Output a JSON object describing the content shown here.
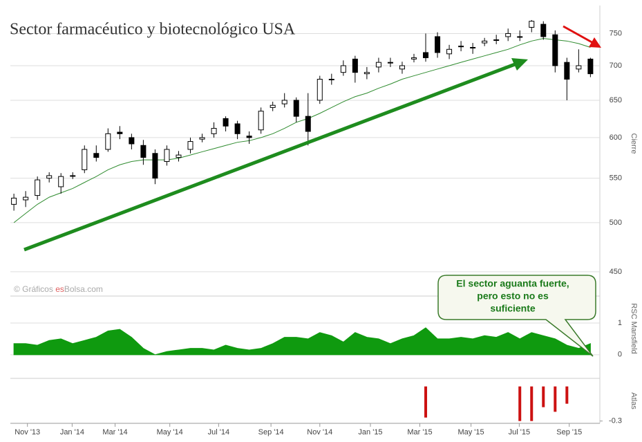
{
  "title": "Sector farmacéutico y biotecnológico USA",
  "watermark": [
    "© Gráficos ",
    "es",
    "Bolsa.com"
  ],
  "callout": [
    "El sector aguanta fuerte,",
    "pero esto no es",
    "suficiente"
  ],
  "chart_data": [
    {
      "type": "candlestick",
      "y_label": "Cierre",
      "log_scale": true,
      "grid": true,
      "up_color": "#ffffff",
      "down_color": "#000000",
      "x": [
        0,
        2,
        4,
        6,
        8,
        10,
        12,
        14,
        16,
        18,
        20,
        22,
        24,
        26,
        28,
        30,
        32,
        34,
        36,
        38,
        40,
        42,
        44,
        46,
        48,
        50,
        52,
        54,
        56,
        58,
        60,
        62,
        64,
        66,
        68,
        70,
        72,
        74,
        76,
        78,
        80,
        82,
        84,
        86,
        88,
        90,
        92,
        94,
        96,
        98
      ],
      "open": [
        520,
        525,
        530,
        550,
        540,
        553,
        560,
        580,
        585,
        607,
        600,
        590,
        580,
        570,
        575,
        585,
        598,
        605,
        625,
        618,
        602,
        610,
        640,
        645,
        650,
        628,
        650,
        680,
        690,
        710,
        688,
        698,
        705,
        695,
        710,
        720,
        745,
        718,
        730,
        728,
        735,
        740,
        745,
        745,
        760,
        765,
        748,
        705,
        695,
        710
      ],
      "high": [
        532,
        535,
        552,
        557,
        556,
        557,
        590,
        590,
        612,
        615,
        605,
        597,
        585,
        590,
        583,
        600,
        605,
        620,
        628,
        622,
        608,
        640,
        648,
        660,
        654,
        660,
        685,
        688,
        708,
        715,
        698,
        712,
        712,
        706,
        718,
        750,
        752,
        732,
        738,
        735,
        743,
        748,
        758,
        755,
        772,
        770,
        755,
        712,
        725,
        712
      ],
      "low": [
        513,
        517,
        525,
        545,
        532,
        549,
        556,
        570,
        582,
        598,
        585,
        566,
        543,
        565,
        570,
        580,
        594,
        600,
        608,
        598,
        592,
        605,
        635,
        640,
        620,
        590,
        645,
        672,
        685,
        675,
        680,
        690,
        698,
        688,
        705,
        706,
        712,
        710,
        722,
        718,
        730,
        733,
        738,
        738,
        752,
        740,
        690,
        650,
        690,
        683
      ],
      "close": [
        527,
        528,
        548,
        553,
        552,
        553,
        585,
        575,
        605,
        605,
        592,
        575,
        550,
        585,
        578,
        595,
        600,
        612,
        615,
        605,
        600,
        635,
        643,
        650,
        628,
        608,
        680,
        680,
        700,
        690,
        690,
        705,
        705,
        700,
        712,
        712,
        720,
        725,
        730,
        728,
        738,
        740,
        750,
        745,
        770,
        745,
        700,
        680,
        700,
        688
      ],
      "ma": {
        "color": "#2e8b2e",
        "values": [
          500,
          510,
          520,
          528,
          533,
          538,
          545,
          552,
          560,
          566,
          570,
          572,
          572,
          572,
          574,
          578,
          582,
          586,
          590,
          594,
          596,
          600,
          605,
          612,
          620,
          625,
          632,
          640,
          648,
          655,
          660,
          667,
          673,
          680,
          685,
          690,
          695,
          700,
          705,
          710,
          715,
          720,
          725,
          732,
          738,
          742,
          740,
          738,
          734,
          728
        ]
      },
      "xlim": [
        -0.6,
        99.6
      ],
      "ylim": [
        442,
        794
      ],
      "yticks": [
        450,
        500,
        550,
        600,
        650,
        700,
        750
      ]
    },
    {
      "type": "area",
      "y_label": "RSC Mansfield",
      "color": "#0f9a0f",
      "grid": true,
      "x": [
        0,
        2,
        4,
        6,
        8,
        10,
        12,
        14,
        16,
        18,
        20,
        22,
        24,
        26,
        28,
        30,
        32,
        34,
        36,
        38,
        40,
        42,
        44,
        46,
        48,
        50,
        52,
        54,
        56,
        58,
        60,
        62,
        64,
        66,
        68,
        70,
        72,
        74,
        76,
        78,
        80,
        82,
        84,
        86,
        88,
        90,
        92,
        94,
        96,
        98
      ],
      "values": [
        0.35,
        0.35,
        0.3,
        0.45,
        0.5,
        0.35,
        0.45,
        0.55,
        0.75,
        0.8,
        0.55,
        0.2,
        0,
        0.1,
        0.15,
        0.2,
        0.2,
        0.15,
        0.3,
        0.2,
        0.15,
        0.2,
        0.35,
        0.55,
        0.55,
        0.5,
        0.7,
        0.6,
        0.4,
        0.7,
        0.55,
        0.5,
        0.35,
        0.5,
        0.6,
        0.85,
        0.5,
        0.5,
        0.55,
        0.5,
        0.6,
        0.55,
        0.7,
        0.5,
        0.7,
        0.6,
        0.5,
        0.3,
        0.2,
        0.35
      ],
      "xlim": [
        -0.6,
        99.6
      ],
      "ylim": [
        -0.2,
        1.85
      ],
      "yticks": [
        0,
        1
      ]
    },
    {
      "type": "bar",
      "y_label": "Atlas",
      "color": "#cc1111",
      "x": [
        70,
        86,
        88,
        90,
        92,
        94
      ],
      "values": [
        -0.27,
        -0.3,
        -0.3,
        -0.18,
        -0.22,
        -0.15
      ],
      "xlim": [
        -0.6,
        99.6
      ],
      "ylim": [
        -0.32,
        0.07
      ],
      "yticks": [
        -0.3
      ],
      "xticks": [
        {
          "value": 2.3,
          "label": "Nov '13"
        },
        {
          "value": 9.9,
          "label": "Jan '14"
        },
        {
          "value": 17.2,
          "label": "Mar '14"
        },
        {
          "value": 26.5,
          "label": "May '14"
        },
        {
          "value": 34.8,
          "label": "Jul '14"
        },
        {
          "value": 43.7,
          "label": "Sep '14"
        },
        {
          "value": 52,
          "label": "Nov '14"
        },
        {
          "value": 60.6,
          "label": "Jan '15"
        },
        {
          "value": 69,
          "label": "Mar '15"
        },
        {
          "value": 77.7,
          "label": "May '15"
        },
        {
          "value": 85.9,
          "label": "Jul '15"
        },
        {
          "value": 94.4,
          "label": "Sep '15"
        }
      ]
    }
  ]
}
